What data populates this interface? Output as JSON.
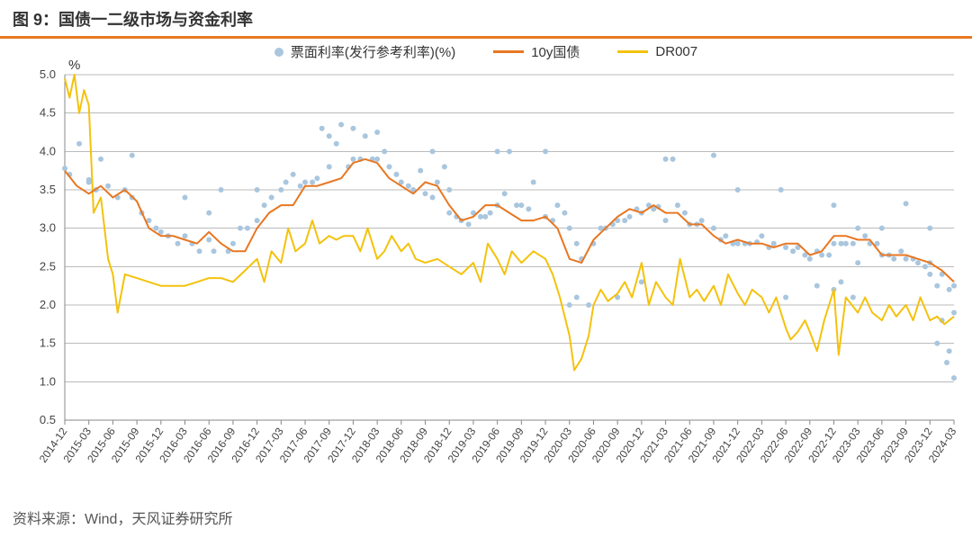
{
  "title": "图 9：国债一二级市场与资金利率",
  "source": "资料来源：Wind，天风证券研究所",
  "legend": {
    "scatter": "票面利率(发行参考利率)(%)",
    "line1": "10y国债",
    "line2": "DR007"
  },
  "y_unit": "%",
  "colors": {
    "scatter": "#a9c6de",
    "line1": "#e87722",
    "line2": "#f4c20d",
    "grid": "#bfbfbf",
    "axis": "#888888",
    "title_rule": "#e87722",
    "background": "#ffffff"
  },
  "style": {
    "scatter_radius": 3.0,
    "line1_width": 2.0,
    "line2_width": 2.0,
    "title_fontsize": 18,
    "axis_fontsize": 13,
    "xaxis_fontsize": 12
  },
  "y_axis": {
    "min": 0.5,
    "max": 5.0,
    "step": 0.5
  },
  "x_labels": [
    "2014-12",
    "2015-03",
    "2015-06",
    "2015-09",
    "2015-12",
    "2016-03",
    "2016-06",
    "2016-09",
    "2016-12",
    "2017-03",
    "2017-06",
    "2017-09",
    "2017-12",
    "2018-03",
    "2018-06",
    "2018-09",
    "2018-12",
    "2019-03",
    "2019-06",
    "2019-09",
    "2019-12",
    "2020-03",
    "2020-06",
    "2020-09",
    "2020-12",
    "2021-03",
    "2021-06",
    "2021-09",
    "2021-12",
    "2022-03",
    "2022-06",
    "2022-09",
    "2022-12",
    "2023-03",
    "2023-06",
    "2023-09",
    "2023-12",
    "2024-03"
  ],
  "scatter": [
    [
      0,
      3.78
    ],
    [
      0.2,
      3.7
    ],
    [
      0.6,
      4.1
    ],
    [
      1.0,
      3.6
    ],
    [
      1.0,
      3.63
    ],
    [
      1.3,
      3.5
    ],
    [
      1.5,
      3.9
    ],
    [
      1.8,
      3.55
    ],
    [
      2.2,
      3.4
    ],
    [
      2.5,
      3.5
    ],
    [
      2.8,
      3.95
    ],
    [
      2.8,
      3.4
    ],
    [
      3.2,
      3.2
    ],
    [
      3.5,
      3.1
    ],
    [
      3.8,
      3.0
    ],
    [
      4.0,
      2.95
    ],
    [
      4.3,
      2.9
    ],
    [
      4.7,
      2.8
    ],
    [
      5.0,
      3.4
    ],
    [
      5.0,
      2.9
    ],
    [
      5.3,
      2.8
    ],
    [
      5.6,
      2.7
    ],
    [
      6.0,
      3.2
    ],
    [
      6.0,
      2.85
    ],
    [
      6.2,
      2.7
    ],
    [
      6.5,
      3.5
    ],
    [
      6.8,
      2.7
    ],
    [
      7.0,
      2.8
    ],
    [
      7.3,
      3.0
    ],
    [
      7.6,
      3.0
    ],
    [
      8.0,
      3.5
    ],
    [
      8.0,
      3.1
    ],
    [
      8.3,
      3.3
    ],
    [
      8.6,
      3.4
    ],
    [
      9.0,
      3.5
    ],
    [
      9.2,
      3.6
    ],
    [
      9.5,
      3.7
    ],
    [
      9.8,
      3.55
    ],
    [
      10.0,
      3.6
    ],
    [
      10.3,
      3.6
    ],
    [
      10.5,
      3.65
    ],
    [
      10.7,
      4.3
    ],
    [
      11.0,
      3.8
    ],
    [
      11.0,
      4.2
    ],
    [
      11.3,
      4.1
    ],
    [
      11.5,
      4.35
    ],
    [
      11.8,
      3.8
    ],
    [
      12.0,
      3.9
    ],
    [
      12.0,
      4.3
    ],
    [
      12.3,
      3.9
    ],
    [
      12.5,
      4.2
    ],
    [
      12.8,
      3.9
    ],
    [
      13.0,
      3.9
    ],
    [
      13.0,
      4.25
    ],
    [
      13.3,
      4.0
    ],
    [
      13.5,
      3.8
    ],
    [
      13.8,
      3.7
    ],
    [
      14.0,
      3.6
    ],
    [
      14.3,
      3.55
    ],
    [
      14.5,
      3.5
    ],
    [
      14.8,
      3.75
    ],
    [
      15.0,
      3.45
    ],
    [
      15.3,
      3.4
    ],
    [
      15.3,
      4.0
    ],
    [
      15.5,
      3.6
    ],
    [
      15.8,
      3.8
    ],
    [
      16.0,
      3.2
    ],
    [
      16.0,
      3.5
    ],
    [
      16.3,
      3.15
    ],
    [
      16.5,
      3.1
    ],
    [
      16.8,
      3.05
    ],
    [
      17.0,
      3.2
    ],
    [
      17.3,
      3.15
    ],
    [
      17.5,
      3.15
    ],
    [
      17.7,
      3.2
    ],
    [
      18.0,
      3.3
    ],
    [
      18.0,
      4.0
    ],
    [
      18.3,
      3.45
    ],
    [
      18.5,
      4.0
    ],
    [
      18.8,
      3.3
    ],
    [
      19.0,
      3.3
    ],
    [
      19.3,
      3.25
    ],
    [
      19.5,
      3.6
    ],
    [
      20.0,
      3.15
    ],
    [
      20.0,
      4.0
    ],
    [
      20.3,
      3.1
    ],
    [
      20.5,
      3.3
    ],
    [
      20.8,
      3.2
    ],
    [
      21.0,
      3.0
    ],
    [
      21.0,
      2.0
    ],
    [
      21.3,
      2.8
    ],
    [
      21.3,
      2.1
    ],
    [
      21.5,
      2.6
    ],
    [
      21.8,
      2.0
    ],
    [
      22.0,
      2.8
    ],
    [
      22.3,
      3.0
    ],
    [
      22.5,
      3.0
    ],
    [
      22.8,
      3.05
    ],
    [
      23.0,
      3.1
    ],
    [
      23.0,
      2.1
    ],
    [
      23.3,
      3.1
    ],
    [
      23.5,
      3.15
    ],
    [
      23.8,
      3.25
    ],
    [
      24.0,
      3.2
    ],
    [
      24.0,
      2.3
    ],
    [
      24.3,
      3.3
    ],
    [
      24.5,
      3.25
    ],
    [
      24.7,
      3.28
    ],
    [
      25.0,
      3.9
    ],
    [
      25.0,
      3.1
    ],
    [
      25.3,
      3.9
    ],
    [
      25.5,
      3.3
    ],
    [
      25.8,
      3.2
    ],
    [
      26.0,
      3.05
    ],
    [
      26.3,
      3.05
    ],
    [
      26.5,
      3.1
    ],
    [
      27.0,
      3.95
    ],
    [
      27.0,
      3.0
    ],
    [
      27.3,
      2.85
    ],
    [
      27.5,
      2.9
    ],
    [
      27.8,
      2.8
    ],
    [
      28.0,
      2.8
    ],
    [
      28.0,
      3.5
    ],
    [
      28.3,
      2.8
    ],
    [
      28.5,
      2.8
    ],
    [
      28.8,
      2.82
    ],
    [
      29.0,
      2.9
    ],
    [
      29.3,
      2.75
    ],
    [
      29.5,
      2.8
    ],
    [
      29.8,
      3.5
    ],
    [
      30.0,
      2.75
    ],
    [
      30.0,
      2.1
    ],
    [
      30.3,
      2.7
    ],
    [
      30.5,
      2.75
    ],
    [
      30.8,
      2.65
    ],
    [
      31.0,
      2.6
    ],
    [
      31.3,
      2.7
    ],
    [
      31.3,
      2.25
    ],
    [
      31.5,
      2.65
    ],
    [
      31.8,
      2.65
    ],
    [
      32.0,
      3.3
    ],
    [
      32.0,
      2.8
    ],
    [
      32.0,
      2.2
    ],
    [
      32.3,
      2.8
    ],
    [
      32.3,
      2.3
    ],
    [
      32.5,
      2.8
    ],
    [
      32.8,
      2.8
    ],
    [
      32.8,
      2.1
    ],
    [
      33.0,
      3.0
    ],
    [
      33.0,
      2.55
    ],
    [
      33.3,
      2.9
    ],
    [
      33.5,
      2.8
    ],
    [
      33.8,
      2.8
    ],
    [
      34.0,
      3.0
    ],
    [
      34.0,
      2.65
    ],
    [
      34.3,
      2.65
    ],
    [
      34.5,
      2.6
    ],
    [
      34.8,
      2.7
    ],
    [
      35.0,
      2.6
    ],
    [
      35.0,
      3.32
    ],
    [
      35.3,
      2.6
    ],
    [
      35.5,
      2.55
    ],
    [
      35.8,
      2.5
    ],
    [
      36.0,
      3.0
    ],
    [
      36.0,
      2.55
    ],
    [
      36.0,
      2.4
    ],
    [
      36.3,
      2.25
    ],
    [
      36.3,
      1.5
    ],
    [
      36.5,
      2.4
    ],
    [
      36.5,
      1.8
    ],
    [
      36.7,
      1.25
    ],
    [
      36.8,
      2.2
    ],
    [
      36.8,
      1.4
    ],
    [
      37.0,
      2.25
    ],
    [
      37.0,
      1.9
    ],
    [
      37.0,
      1.05
    ]
  ],
  "line1": [
    [
      0,
      3.75
    ],
    [
      0.5,
      3.55
    ],
    [
      1.0,
      3.45
    ],
    [
      1.5,
      3.55
    ],
    [
      2.0,
      3.4
    ],
    [
      2.5,
      3.5
    ],
    [
      3.0,
      3.35
    ],
    [
      3.5,
      3.0
    ],
    [
      4.0,
      2.9
    ],
    [
      4.5,
      2.9
    ],
    [
      5.0,
      2.85
    ],
    [
      5.5,
      2.8
    ],
    [
      6.0,
      2.95
    ],
    [
      6.5,
      2.8
    ],
    [
      7.0,
      2.7
    ],
    [
      7.5,
      2.7
    ],
    [
      8.0,
      3.0
    ],
    [
      8.5,
      3.2
    ],
    [
      9.0,
      3.3
    ],
    [
      9.5,
      3.3
    ],
    [
      10.0,
      3.55
    ],
    [
      10.5,
      3.55
    ],
    [
      11.0,
      3.6
    ],
    [
      11.5,
      3.65
    ],
    [
      12.0,
      3.85
    ],
    [
      12.5,
      3.9
    ],
    [
      13.0,
      3.85
    ],
    [
      13.5,
      3.65
    ],
    [
      14.0,
      3.55
    ],
    [
      14.5,
      3.45
    ],
    [
      15.0,
      3.6
    ],
    [
      15.5,
      3.55
    ],
    [
      16.0,
      3.3
    ],
    [
      16.5,
      3.1
    ],
    [
      17.0,
      3.15
    ],
    [
      17.5,
      3.3
    ],
    [
      18.0,
      3.3
    ],
    [
      18.5,
      3.2
    ],
    [
      19.0,
      3.1
    ],
    [
      19.5,
      3.1
    ],
    [
      20.0,
      3.15
    ],
    [
      20.5,
      3.0
    ],
    [
      21.0,
      2.6
    ],
    [
      21.5,
      2.55
    ],
    [
      22.0,
      2.85
    ],
    [
      22.5,
      3.0
    ],
    [
      23.0,
      3.15
    ],
    [
      23.5,
      3.25
    ],
    [
      24.0,
      3.2
    ],
    [
      24.5,
      3.3
    ],
    [
      25.0,
      3.2
    ],
    [
      25.5,
      3.2
    ],
    [
      26.0,
      3.05
    ],
    [
      26.5,
      3.05
    ],
    [
      27.0,
      2.9
    ],
    [
      27.5,
      2.8
    ],
    [
      28.0,
      2.85
    ],
    [
      28.5,
      2.8
    ],
    [
      29.0,
      2.8
    ],
    [
      29.5,
      2.75
    ],
    [
      30.0,
      2.8
    ],
    [
      30.5,
      2.8
    ],
    [
      31.0,
      2.65
    ],
    [
      31.5,
      2.7
    ],
    [
      32.0,
      2.9
    ],
    [
      32.5,
      2.9
    ],
    [
      33.0,
      2.85
    ],
    [
      33.5,
      2.85
    ],
    [
      34.0,
      2.65
    ],
    [
      34.5,
      2.65
    ],
    [
      35.0,
      2.65
    ],
    [
      35.5,
      2.6
    ],
    [
      36.0,
      2.55
    ],
    [
      36.5,
      2.45
    ],
    [
      37.0,
      2.3
    ]
  ],
  "line2": [
    [
      0,
      4.95
    ],
    [
      0.2,
      4.7
    ],
    [
      0.4,
      5.0
    ],
    [
      0.6,
      4.5
    ],
    [
      0.8,
      4.8
    ],
    [
      1.0,
      4.6
    ],
    [
      1.2,
      3.2
    ],
    [
      1.5,
      3.4
    ],
    [
      1.8,
      2.6
    ],
    [
      2.0,
      2.4
    ],
    [
      2.2,
      1.9
    ],
    [
      2.5,
      2.4
    ],
    [
      3.0,
      2.35
    ],
    [
      3.5,
      2.3
    ],
    [
      4.0,
      2.25
    ],
    [
      4.5,
      2.25
    ],
    [
      5.0,
      2.25
    ],
    [
      5.5,
      2.3
    ],
    [
      6.0,
      2.35
    ],
    [
      6.5,
      2.35
    ],
    [
      7.0,
      2.3
    ],
    [
      7.5,
      2.45
    ],
    [
      8.0,
      2.6
    ],
    [
      8.3,
      2.3
    ],
    [
      8.6,
      2.7
    ],
    [
      9.0,
      2.55
    ],
    [
      9.3,
      3.0
    ],
    [
      9.6,
      2.7
    ],
    [
      10.0,
      2.8
    ],
    [
      10.3,
      3.1
    ],
    [
      10.6,
      2.8
    ],
    [
      11.0,
      2.9
    ],
    [
      11.3,
      2.85
    ],
    [
      11.6,
      2.9
    ],
    [
      12.0,
      2.9
    ],
    [
      12.3,
      2.7
    ],
    [
      12.6,
      3.0
    ],
    [
      13.0,
      2.6
    ],
    [
      13.3,
      2.7
    ],
    [
      13.6,
      2.9
    ],
    [
      14.0,
      2.7
    ],
    [
      14.3,
      2.8
    ],
    [
      14.6,
      2.6
    ],
    [
      15.0,
      2.55
    ],
    [
      15.5,
      2.6
    ],
    [
      16.0,
      2.5
    ],
    [
      16.5,
      2.4
    ],
    [
      17.0,
      2.55
    ],
    [
      17.3,
      2.3
    ],
    [
      17.6,
      2.8
    ],
    [
      18.0,
      2.6
    ],
    [
      18.3,
      2.4
    ],
    [
      18.6,
      2.7
    ],
    [
      19.0,
      2.55
    ],
    [
      19.5,
      2.7
    ],
    [
      20.0,
      2.6
    ],
    [
      20.3,
      2.4
    ],
    [
      20.6,
      2.1
    ],
    [
      21.0,
      1.6
    ],
    [
      21.2,
      1.15
    ],
    [
      21.5,
      1.3
    ],
    [
      21.8,
      1.6
    ],
    [
      22.0,
      2.0
    ],
    [
      22.3,
      2.2
    ],
    [
      22.6,
      2.05
    ],
    [
      23.0,
      2.15
    ],
    [
      23.3,
      2.3
    ],
    [
      23.6,
      2.1
    ],
    [
      24.0,
      2.55
    ],
    [
      24.3,
      2.0
    ],
    [
      24.6,
      2.3
    ],
    [
      25.0,
      2.1
    ],
    [
      25.3,
      2.0
    ],
    [
      25.6,
      2.6
    ],
    [
      26.0,
      2.1
    ],
    [
      26.3,
      2.2
    ],
    [
      26.6,
      2.05
    ],
    [
      27.0,
      2.25
    ],
    [
      27.3,
      2.0
    ],
    [
      27.6,
      2.4
    ],
    [
      28.0,
      2.15
    ],
    [
      28.3,
      2.0
    ],
    [
      28.6,
      2.2
    ],
    [
      29.0,
      2.1
    ],
    [
      29.3,
      1.9
    ],
    [
      29.6,
      2.1
    ],
    [
      30.0,
      1.7
    ],
    [
      30.2,
      1.55
    ],
    [
      30.5,
      1.65
    ],
    [
      30.8,
      1.8
    ],
    [
      31.0,
      1.65
    ],
    [
      31.3,
      1.4
    ],
    [
      31.6,
      1.8
    ],
    [
      32.0,
      2.2
    ],
    [
      32.2,
      1.35
    ],
    [
      32.5,
      2.1
    ],
    [
      33.0,
      1.9
    ],
    [
      33.3,
      2.1
    ],
    [
      33.6,
      1.9
    ],
    [
      34.0,
      1.8
    ],
    [
      34.3,
      2.0
    ],
    [
      34.6,
      1.85
    ],
    [
      35.0,
      2.0
    ],
    [
      35.3,
      1.8
    ],
    [
      35.6,
      2.1
    ],
    [
      36.0,
      1.8
    ],
    [
      36.3,
      1.85
    ],
    [
      36.6,
      1.75
    ],
    [
      37.0,
      1.85
    ]
  ]
}
